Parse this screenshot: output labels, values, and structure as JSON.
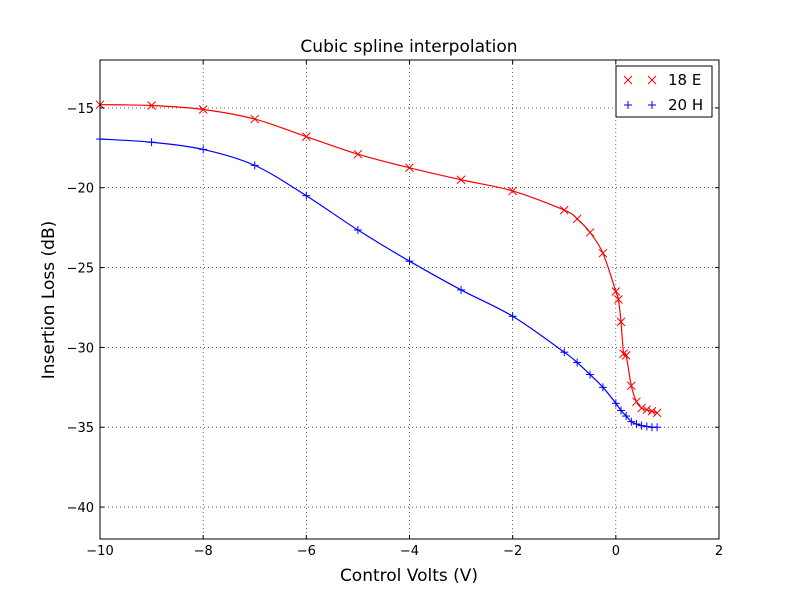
{
  "chart_data": {
    "type": "line",
    "title": "Cubic spline interpolation",
    "xlabel": "Control Volts (V)",
    "ylabel": "Insertion Loss (dB)",
    "xlim": [
      -10,
      2
    ],
    "ylim": [
      -42,
      -12
    ],
    "xticks": [
      -10,
      -8,
      -6,
      -4,
      -2,
      0,
      2
    ],
    "xtick_labels": [
      "−10",
      "−8",
      "−6",
      "−4",
      "−2",
      "0",
      "2"
    ],
    "yticks": [
      -40,
      -35,
      -30,
      -25,
      -20,
      -15
    ],
    "ytick_labels": [
      "−40",
      "−35",
      "−30",
      "−25",
      "−20",
      "−15"
    ],
    "grid": true,
    "legend_position": "top-right",
    "series": [
      {
        "name": "18 E",
        "color": "#ff0000",
        "marker": "x",
        "x": [
          -10,
          -9,
          -8,
          -7,
          -6,
          -5,
          -4,
          -3,
          -2,
          -1,
          -0.75,
          -0.5,
          -0.25,
          0,
          0.05,
          0.1,
          0.15,
          0.2,
          0.3,
          0.4,
          0.5,
          0.6,
          0.7,
          0.8
        ],
        "y": [
          -14.8,
          -14.85,
          -15.1,
          -15.7,
          -16.8,
          -17.9,
          -18.75,
          -19.5,
          -20.2,
          -21.4,
          -21.95,
          -22.8,
          -24.1,
          -26.5,
          -27,
          -28.4,
          -30.4,
          -30.5,
          -32.4,
          -33.4,
          -33.8,
          -33.9,
          -34,
          -34.1
        ]
      },
      {
        "name": "20 H",
        "color": "#0000ff",
        "marker": "+",
        "x": [
          -10,
          -9,
          -8,
          -7,
          -6,
          -5,
          -4,
          -3,
          -2,
          -1,
          -0.75,
          -0.5,
          -0.25,
          0,
          0.1,
          0.2,
          0.3,
          0.4,
          0.5,
          0.6,
          0.7,
          0.8
        ],
        "y": [
          -16.95,
          -17.15,
          -17.6,
          -18.6,
          -20.5,
          -22.65,
          -24.6,
          -26.4,
          -28.05,
          -30.3,
          -30.95,
          -31.7,
          -32.5,
          -33.5,
          -33.95,
          -34.3,
          -34.65,
          -34.8,
          -34.9,
          -34.95,
          -35,
          -35
        ]
      }
    ]
  }
}
